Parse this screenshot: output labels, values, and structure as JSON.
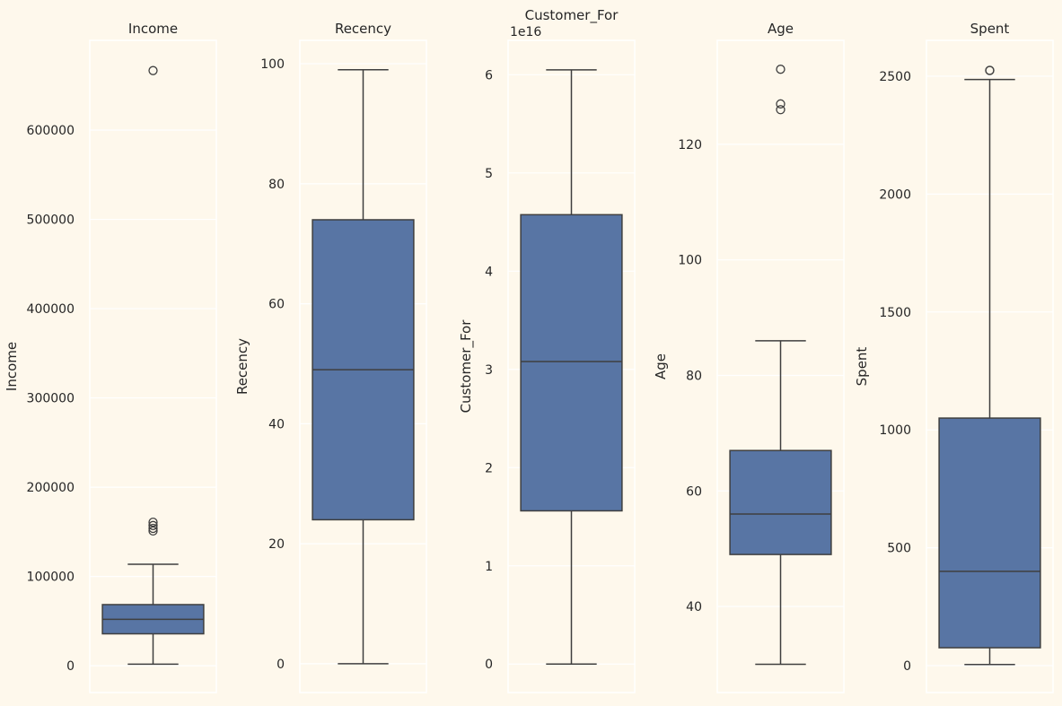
{
  "colors": {
    "background": "#fef8ec",
    "box_fill": "#5875a4",
    "line": "#3f3f3f",
    "grid": "#ffffff"
  },
  "chart_data": [
    {
      "type": "box",
      "title": "Income",
      "ylabel": "Income",
      "offset_label": "",
      "ylim": [
        -30000,
        700500
      ],
      "yticks": [
        0,
        100000,
        200000,
        300000,
        400000,
        500000,
        600000
      ],
      "ytick_labels": [
        "0",
        "100000",
        "200000",
        "300000",
        "400000",
        "500000",
        "600000"
      ],
      "whisker_low": 1730,
      "q1": 35800,
      "median": 52000,
      "q3": 68500,
      "whisker_high": 113700,
      "outliers": [
        151000,
        153900,
        157100,
        160800,
        666666
      ]
    },
    {
      "type": "box",
      "title": "Recency",
      "ylabel": "Recency",
      "offset_label": "",
      "ylim": [
        -4.8,
        103.9
      ],
      "yticks": [
        0,
        20,
        40,
        60,
        80,
        100
      ],
      "ytick_labels": [
        "0",
        "20",
        "40",
        "60",
        "80",
        "100"
      ],
      "whisker_low": 0,
      "q1": 24,
      "median": 49,
      "q3": 74,
      "whisker_high": 99,
      "outliers": []
    },
    {
      "type": "box",
      "title": "Customer_For",
      "ylabel": "Customer_For",
      "offset_label": "1e16",
      "ylim": [
        -0.29,
        6.35
      ],
      "yticks": [
        0,
        1,
        2,
        3,
        4,
        5,
        6
      ],
      "ytick_labels": [
        "0",
        "1",
        "2",
        "3",
        "4",
        "5",
        "6"
      ],
      "whisker_low": 0,
      "q1": 1.56,
      "median": 3.08,
      "q3": 4.575,
      "whisker_high": 6.05,
      "outliers": []
    },
    {
      "type": "box",
      "title": "Age",
      "ylabel": "Age",
      "offset_label": "",
      "ylim": [
        25.1,
        138
      ],
      "yticks": [
        40,
        60,
        80,
        100,
        120
      ],
      "ytick_labels": [
        "40",
        "60",
        "80",
        "100",
        "120"
      ],
      "whisker_low": 30,
      "q1": 49,
      "median": 56,
      "q3": 67,
      "whisker_high": 86,
      "outliers": [
        126,
        127,
        133
      ]
    },
    {
      "type": "box",
      "title": "Spent",
      "ylabel": "Spent",
      "offset_label": "",
      "ylim": [
        -114,
        2652
      ],
      "yticks": [
        0,
        500,
        1000,
        1500,
        2000,
        2500
      ],
      "ytick_labels": [
        "0",
        "500",
        "1000",
        "1500",
        "2000",
        "2500"
      ],
      "whisker_low": 5,
      "q1": 76,
      "median": 400,
      "q3": 1050,
      "whisker_high": 2486,
      "outliers": [
        2524,
        2525
      ]
    }
  ]
}
